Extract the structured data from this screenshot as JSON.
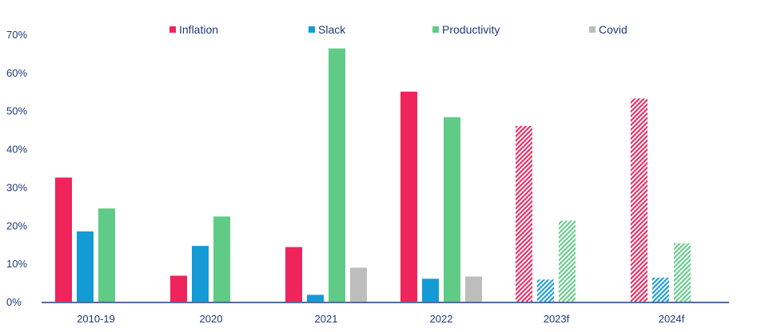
{
  "chart_data": {
    "type": "bar",
    "title": "",
    "xlabel": "",
    "ylabel": "",
    "ylim": [
      0,
      70
    ],
    "y_ticks": [
      "0%",
      "10%",
      "20%",
      "30%",
      "40%",
      "50%",
      "60%",
      "70%"
    ],
    "y_tick_values": [
      0,
      10,
      20,
      30,
      40,
      50,
      60,
      70
    ],
    "categories": [
      "2010-19",
      "2020",
      "2021",
      "2022",
      "2023f",
      "2024f"
    ],
    "forecast_categories": [
      "2023f",
      "2024f"
    ],
    "legend_position": "top",
    "grid": false,
    "series": [
      {
        "name": "Inflation",
        "color": "#f0245c",
        "values": [
          32.5,
          6.8,
          14.3,
          55.0,
          46.0,
          53.2
        ]
      },
      {
        "name": "Slack",
        "color": "#149bd6",
        "values": [
          18.4,
          14.6,
          1.8,
          6.0,
          5.8,
          6.3
        ]
      },
      {
        "name": "Productivity",
        "color": "#5fcb87",
        "values": [
          24.4,
          22.3,
          66.3,
          48.3,
          21.2,
          15.3
        ]
      },
      {
        "name": "Covid",
        "color": "#bdbdbd",
        "values": [
          0,
          0,
          8.9,
          6.6,
          0,
          0
        ]
      }
    ]
  }
}
